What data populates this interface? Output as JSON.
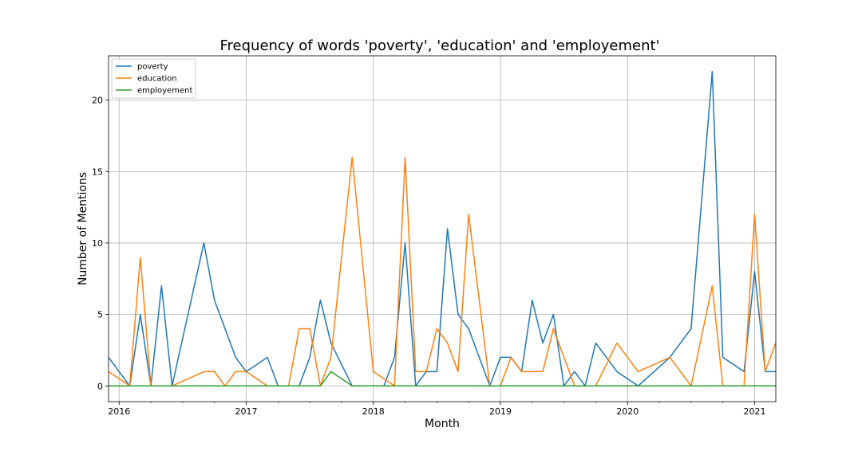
{
  "chart_data": {
    "type": "line",
    "title": "Frequency of words 'poverty', 'education' and 'employement'",
    "xlabel": "Month",
    "ylabel": "Number of Mentions",
    "xlim": [
      "2015-12",
      "2021-03"
    ],
    "ylim": [
      -1.1,
      23.1
    ],
    "x_ticks": [
      "2016",
      "2017",
      "2018",
      "2019",
      "2020",
      "2021"
    ],
    "y_ticks": [
      0,
      5,
      10,
      15,
      20
    ],
    "grid": true,
    "legend_position": "top-left",
    "series": [
      {
        "name": "poverty",
        "color": "#1f77b4",
        "points": [
          [
            "2015-12",
            2
          ],
          [
            "2016-02",
            0
          ],
          [
            "2016-03",
            5
          ],
          [
            "2016-04",
            0
          ],
          [
            "2016-05",
            7
          ],
          [
            "2016-06",
            0
          ],
          [
            "2016-09",
            10
          ],
          [
            "2016-10",
            6
          ],
          [
            "2016-12",
            2
          ],
          [
            "2017-01",
            1
          ],
          [
            "2017-03",
            2
          ],
          [
            "2017-04",
            0
          ],
          [
            "2017-06",
            0
          ],
          [
            "2017-07",
            2
          ],
          [
            "2017-08",
            6
          ],
          [
            "2017-09",
            3
          ],
          [
            "2017-11",
            0
          ],
          [
            "2018-02",
            0
          ],
          [
            "2018-03",
            2
          ],
          [
            "2018-04",
            10
          ],
          [
            "2018-05",
            0
          ],
          [
            "2018-06",
            1
          ],
          [
            "2018-07",
            1
          ],
          [
            "2018-08",
            11
          ],
          [
            "2018-09",
            5
          ],
          [
            "2018-10",
            4
          ],
          [
            "2018-12",
            0
          ],
          [
            "2019-01",
            2
          ],
          [
            "2019-02",
            2
          ],
          [
            "2019-03",
            1
          ],
          [
            "2019-04",
            6
          ],
          [
            "2019-05",
            3
          ],
          [
            "2019-06",
            5
          ],
          [
            "2019-07",
            0
          ],
          [
            "2019-08",
            1
          ],
          [
            "2019-09",
            0
          ],
          [
            "2019-10",
            3
          ],
          [
            "2019-12",
            1
          ],
          [
            "2020-02",
            0
          ],
          [
            "2020-05",
            2
          ],
          [
            "2020-07",
            4
          ],
          [
            "2020-09",
            22
          ],
          [
            "2020-10",
            2
          ],
          [
            "2020-12",
            1
          ],
          [
            "2021-01",
            8
          ],
          [
            "2021-02",
            1
          ],
          [
            "2021-03",
            1
          ]
        ]
      },
      {
        "name": "education",
        "color": "#ff7f0e",
        "points": [
          [
            "2015-12",
            1
          ],
          [
            "2016-02",
            0
          ],
          [
            "2016-03",
            9
          ],
          [
            "2016-04",
            0
          ],
          [
            "2016-06",
            0
          ],
          [
            "2016-09",
            1
          ],
          [
            "2016-10",
            1
          ],
          [
            "2016-11",
            0
          ],
          [
            "2016-12",
            1
          ],
          [
            "2017-01",
            1
          ],
          [
            "2017-03",
            0
          ],
          [
            "2017-05",
            0
          ],
          [
            "2017-06",
            4
          ],
          [
            "2017-07",
            4
          ],
          [
            "2017-08",
            0
          ],
          [
            "2017-09",
            2
          ],
          [
            "2017-11",
            16
          ],
          [
            "2018-01",
            1
          ],
          [
            "2018-03",
            0
          ],
          [
            "2018-04",
            16
          ],
          [
            "2018-05",
            1
          ],
          [
            "2018-06",
            1
          ],
          [
            "2018-07",
            4
          ],
          [
            "2018-08",
            3
          ],
          [
            "2018-09",
            1
          ],
          [
            "2018-10",
            12
          ],
          [
            "2018-12",
            0
          ],
          [
            "2019-01",
            0
          ],
          [
            "2019-02",
            2
          ],
          [
            "2019-03",
            1
          ],
          [
            "2019-04",
            1
          ],
          [
            "2019-05",
            1
          ],
          [
            "2019-06",
            4
          ],
          [
            "2019-08",
            0
          ],
          [
            "2019-10",
            0
          ],
          [
            "2019-12",
            3
          ],
          [
            "2020-02",
            1
          ],
          [
            "2020-05",
            2
          ],
          [
            "2020-07",
            0
          ],
          [
            "2020-09",
            7
          ],
          [
            "2020-10",
            0
          ],
          [
            "2020-12",
            0
          ],
          [
            "2021-01",
            12
          ],
          [
            "2021-02",
            1
          ],
          [
            "2021-03",
            3
          ]
        ]
      },
      {
        "name": "employement",
        "color": "#2ca02c",
        "points": [
          [
            "2015-12",
            0
          ],
          [
            "2017-08",
            0
          ],
          [
            "2017-09",
            1
          ],
          [
            "2017-11",
            0
          ],
          [
            "2021-03",
            0
          ]
        ]
      }
    ]
  }
}
